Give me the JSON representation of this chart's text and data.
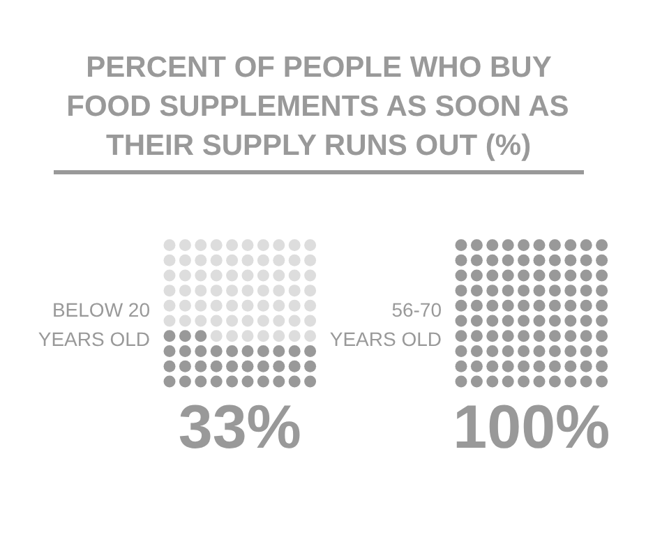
{
  "chart_data": {
    "type": "other",
    "title": "PERCENT OF PEOPLE WHO BUY\nFOOD SUPPLEMENTS AS SOON AS\nTHEIR SUPPLY RUNS OUT (%)",
    "categories": [
      "BELOW 20\nYEARS OLD",
      "56-70\nYEARS OLD"
    ],
    "values": [
      33,
      100
    ],
    "colors": [
      "#999999",
      "#999999"
    ],
    "value_labels": [
      "33%",
      "100%"
    ]
  }
}
